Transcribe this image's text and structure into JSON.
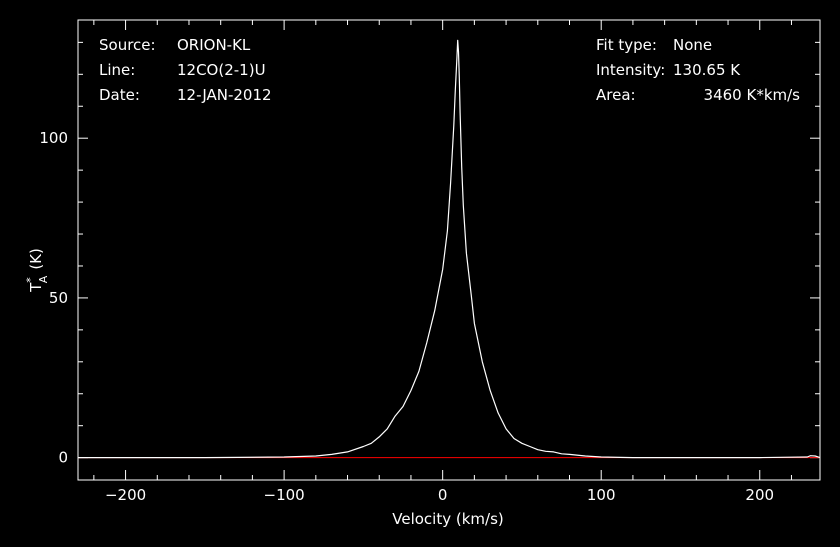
{
  "header_info": {
    "source_label": "Source:",
    "source_value": "ORION-KL",
    "line_label": "Line:",
    "line_value": "12CO(2-1)U",
    "date_label": "Date:",
    "date_value": "12-JAN-2012",
    "fit_label": "Fit type:",
    "fit_value": "None",
    "intensity_label": "Intensity:",
    "intensity_value": "130.65 K",
    "area_label": "Area:",
    "area_value": "3460 K*km/s"
  },
  "chart_data": {
    "type": "line",
    "title": "",
    "xlabel": "Velocity (km/s)",
    "ylabel": "T",
    "ylabel_sub": "A",
    "ylabel_sup": "*",
    "ylabel_unit": "(K)",
    "xlim": [
      -230,
      238
    ],
    "ylim": [
      -7,
      137
    ],
    "xticks": [
      -200,
      -100,
      0,
      100,
      200
    ],
    "xtick_labels": [
      "−200",
      "−100",
      "0",
      "100",
      "200"
    ],
    "yticks": [
      0,
      50,
      100
    ],
    "ytick_labels": [
      "0",
      "50",
      "100"
    ],
    "grid": false,
    "series": [
      {
        "color": "#ffffff",
        "x": [
          -230,
          -200,
          -150,
          -100,
          -80,
          -70,
          -60,
          -50,
          -45,
          -40,
          -35,
          -30,
          -25,
          -20,
          -15,
          -10,
          -5,
          0,
          3,
          5,
          7,
          8,
          9,
          9.5,
          10,
          10.5,
          11,
          12,
          13,
          15,
          18,
          20,
          25,
          30,
          35,
          40,
          45,
          50,
          55,
          60,
          65,
          70,
          75,
          80,
          90,
          100,
          120,
          150,
          200,
          230,
          232,
          235,
          238
        ],
        "y": [
          0,
          0,
          0,
          0.2,
          0.5,
          1.0,
          1.8,
          3.5,
          4.5,
          6.5,
          9.0,
          13.0,
          16.0,
          21.0,
          27.0,
          36.0,
          46.0,
          59.0,
          71.0,
          86.0,
          104.0,
          115.0,
          125.0,
          130.65,
          127.0,
          119.0,
          108.0,
          91.0,
          79.0,
          64.0,
          51.0,
          42.0,
          30.0,
          21.0,
          14.0,
          9.0,
          6.0,
          4.5,
          3.5,
          2.5,
          2.0,
          1.8,
          1.2,
          1.0,
          0.5,
          0.2,
          0,
          0,
          0,
          0.2,
          0.6,
          0.5,
          0
        ]
      },
      {
        "color": "#ff0000",
        "x": [
          -230,
          238
        ],
        "y": [
          0,
          0
        ]
      }
    ]
  }
}
